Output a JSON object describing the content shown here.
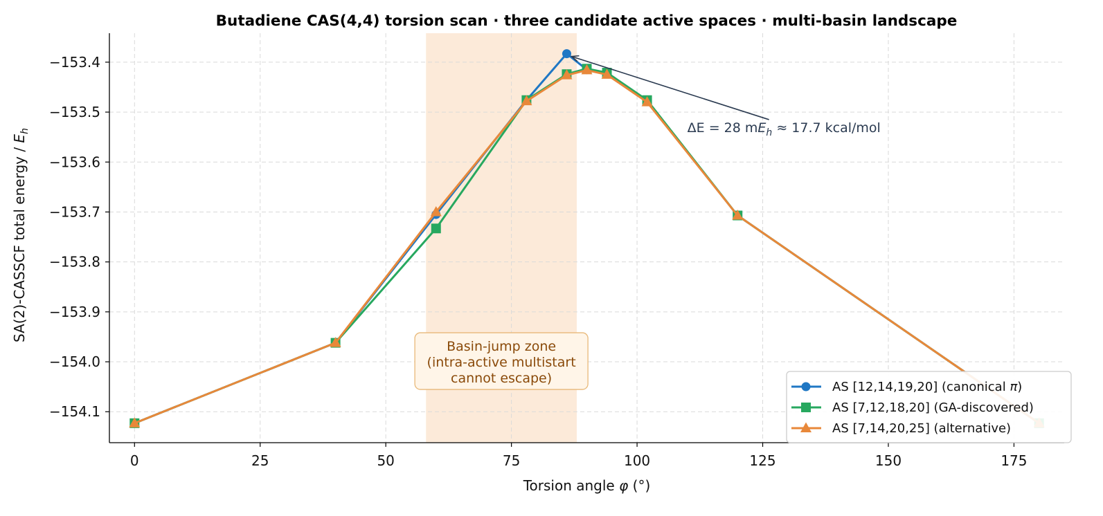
{
  "chart_data": {
    "type": "line",
    "title": "Butadiene CAS(4,4) torsion scan · three candidate active spaces · multi-basin landscape",
    "xlabel": "Torsion angle φ (°)",
    "ylabel": "SA(2)-CASSCF total energy / E_h",
    "xlim": [
      -5,
      185
    ],
    "ylim": [
      -154.162,
      -153.342
    ],
    "xticks": [
      0,
      25,
      50,
      75,
      100,
      125,
      150,
      175
    ],
    "xtick_labels": [
      "0",
      "25",
      "50",
      "75",
      "100",
      "125",
      "150",
      "175"
    ],
    "yticks": [
      -154.1,
      -154.0,
      -153.9,
      -153.8,
      -153.7,
      -153.6,
      -153.5,
      -153.4
    ],
    "ytick_labels": [
      "−154.1",
      "−154.0",
      "−153.9",
      "−153.8",
      "−153.7",
      "−153.6",
      "−153.5",
      "−153.4"
    ],
    "grid": true,
    "legend_position": "lower right",
    "shaded_region": {
      "x": [
        58,
        88
      ],
      "color": "#fbe3cc"
    },
    "series": [
      {
        "name": "AS [12,14,19,20] (canonical π)",
        "color": "#1f77c4",
        "marker": "circle",
        "x": [
          0,
          40,
          60,
          78,
          86,
          90,
          94,
          102,
          120,
          180
        ],
        "y": [
          -154.123,
          -153.962,
          -153.705,
          -153.476,
          -153.383,
          -153.415,
          -153.423,
          -153.478,
          -153.707,
          -154.123
        ]
      },
      {
        "name": "AS [7,12,18,20] (GA-discovered)",
        "color": "#27a85f",
        "marker": "square",
        "x": [
          0,
          40,
          60,
          78,
          86,
          90,
          94,
          102,
          120,
          180
        ],
        "y": [
          -154.123,
          -153.962,
          -153.733,
          -153.476,
          -153.424,
          -153.413,
          -153.421,
          -153.476,
          -153.707,
          -154.123
        ]
      },
      {
        "name": "AS [7,14,20,25] (alternative)",
        "color": "#e8883a",
        "marker": "triangle",
        "x": [
          0,
          40,
          60,
          78,
          86,
          90,
          94,
          102,
          120,
          180
        ],
        "y": [
          -154.123,
          -153.962,
          -153.7,
          -153.478,
          -153.426,
          -153.416,
          -153.425,
          -153.48,
          -153.707,
          -154.123
        ]
      }
    ],
    "annotations": [
      {
        "text": "ΔE = 28 mE_h  ≈  17.7 kcal/mol",
        "text_parts": [
          "ΔE",
          " = 28 m",
          "E",
          "h",
          "  ≈  17.7 kcal/mol"
        ],
        "arrow_to": [
          86,
          -153.383
        ],
        "text_at": [
          110,
          -153.54
        ],
        "color": "#2a3a50"
      },
      {
        "lines": [
          "Basin-jump zone",
          "(intra-active multistart",
          "cannot escape)"
        ],
        "at": [
          73,
          -154.0
        ],
        "color": "#8a4a0a"
      }
    ]
  }
}
